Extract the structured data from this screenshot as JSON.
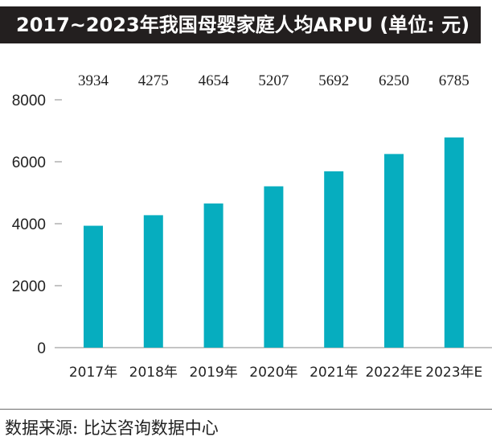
{
  "title": "2017~2023年我国母婴家庭人均ARPU (单位: 元)",
  "source": "数据来源: 比达咨询数据中心",
  "colors": {
    "bar": "#06adbf",
    "title_bg": "#231f1f",
    "axis": "#888888",
    "text": "#222222"
  },
  "chart_data": {
    "type": "bar",
    "title": "2017~2023年我国母婴家庭人均ARPU (单位: 元)",
    "categories": [
      "2017年",
      "2018年",
      "2019年",
      "2020年",
      "2021年",
      "2022年E",
      "2023年E"
    ],
    "values": [
      3934,
      4275,
      4654,
      5207,
      5692,
      6250,
      6785
    ],
    "data_labels": [
      "3934",
      "4275",
      "4654",
      "5207",
      "5692",
      "6250",
      "6785"
    ],
    "yticks": [
      0,
      2000,
      4000,
      6000,
      8000
    ],
    "ylim": [
      0,
      8000
    ],
    "xlabel": "",
    "ylabel": "",
    "grid": false
  }
}
